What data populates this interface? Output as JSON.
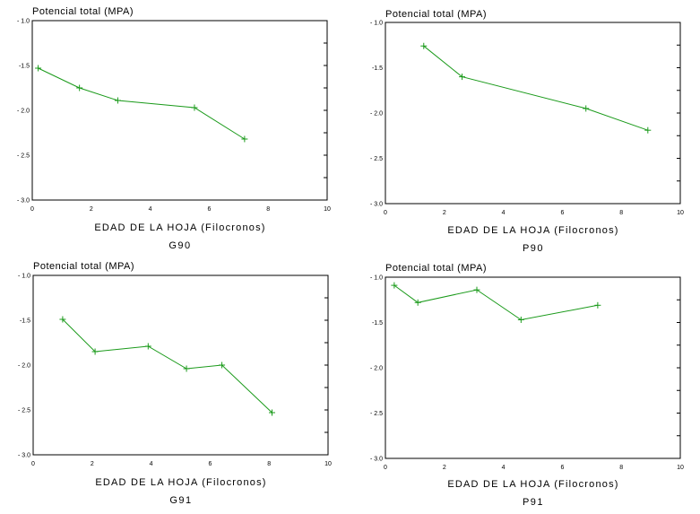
{
  "chart_data": [
    {
      "type": "line",
      "ylabel": "Potencial total (MPA)",
      "xlabel": "EDAD DE LA HOJA (Filocronos)",
      "caption": "G90",
      "xlim": [
        0,
        10
      ],
      "ylim": [
        -1.0,
        -3.0
      ],
      "x_ticks": [
        "0",
        "2",
        "4",
        "6",
        "8",
        "10"
      ],
      "y_ticks": [
        "- 1.0",
        "-1.5",
        "- 2.0",
        "- 2.5",
        "- 3.0"
      ],
      "series": [
        {
          "x": [
            0.2,
            1.6,
            2.9,
            5.5,
            7.2
          ],
          "y": [
            -1.53,
            -1.75,
            -1.89,
            -1.97,
            -2.32
          ]
        }
      ]
    },
    {
      "type": "line",
      "ylabel": "Potencial total (MPA)",
      "xlabel": "EDAD DE LA HOJA (Filocronos)",
      "caption": "P90",
      "xlim": [
        0,
        10
      ],
      "ylim": [
        -1.0,
        -3.0
      ],
      "x_ticks": [
        "0",
        "2",
        "4",
        "6",
        "8",
        "10"
      ],
      "y_ticks": [
        "- 1.0",
        "-1.5",
        "- 2.0",
        "- 2.5",
        "- 3.0"
      ],
      "series": [
        {
          "x": [
            1.3,
            2.6,
            6.8,
            8.9
          ],
          "y": [
            -1.26,
            -1.6,
            -1.95,
            -2.19
          ]
        }
      ]
    },
    {
      "type": "line",
      "ylabel": "Potencial total (MPA)",
      "xlabel": "EDAD DE LA HOJA (Filocronos)",
      "caption": "G91",
      "xlim": [
        0,
        10
      ],
      "ylim": [
        -1.0,
        -3.0
      ],
      "x_ticks": [
        "0",
        "2",
        "4",
        "6",
        "8",
        "10"
      ],
      "y_ticks": [
        "- 1.0",
        "-1.5",
        "- 2.0",
        "- 2.5",
        "- 3.0"
      ],
      "series": [
        {
          "x": [
            1.0,
            2.1,
            3.9,
            5.2,
            6.4,
            8.1
          ],
          "y": [
            -1.49,
            -1.85,
            -1.79,
            -2.04,
            -2.0,
            -2.53
          ]
        }
      ]
    },
    {
      "type": "line",
      "ylabel": "Potencial total (MPA)",
      "xlabel": "EDAD DE LA HOJA (Filocronos)",
      "caption": "P91",
      "xlim": [
        0,
        10
      ],
      "ylim": [
        -1.0,
        -3.0
      ],
      "x_ticks": [
        "0",
        "2",
        "4",
        "6",
        "8",
        "10"
      ],
      "y_ticks": [
        "- 1.0",
        "-1.5",
        "- 2.0",
        "- 2.5",
        "- 3.0"
      ],
      "series": [
        {
          "x": [
            0.3,
            1.1,
            3.1,
            4.6,
            7.2
          ],
          "y": [
            -1.09,
            -1.28,
            -1.14,
            -1.47,
            -1.31
          ]
        }
      ]
    }
  ],
  "colors": {
    "series": "#1a9a1a",
    "axis": "#000000"
  }
}
